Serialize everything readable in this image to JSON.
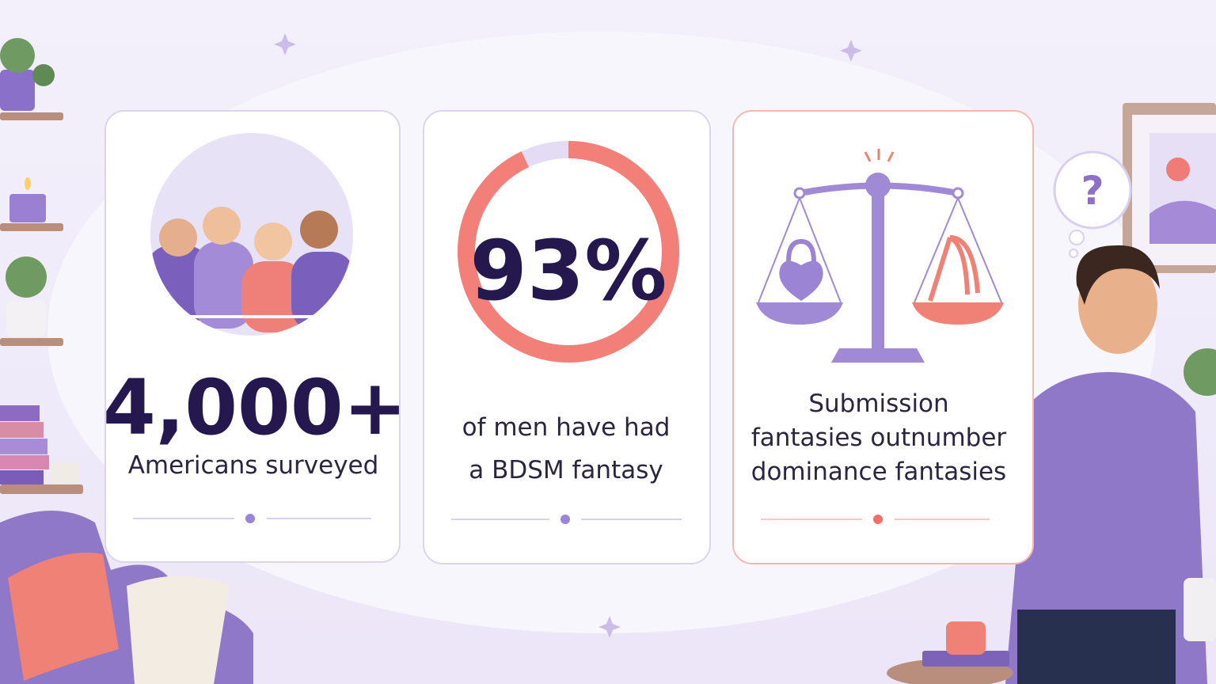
{
  "cards": [
    {
      "stat": "4,000+",
      "lines": [
        "Americans surveyed"
      ]
    },
    {
      "stat": {
        "value": 93,
        "label": "93%"
      },
      "lines": [
        "of men have had",
        "a BDSM fantasy"
      ]
    },
    {
      "lines": [
        "Submission",
        "fantasies outnumber",
        "dominance fantasies"
      ]
    }
  ]
}
